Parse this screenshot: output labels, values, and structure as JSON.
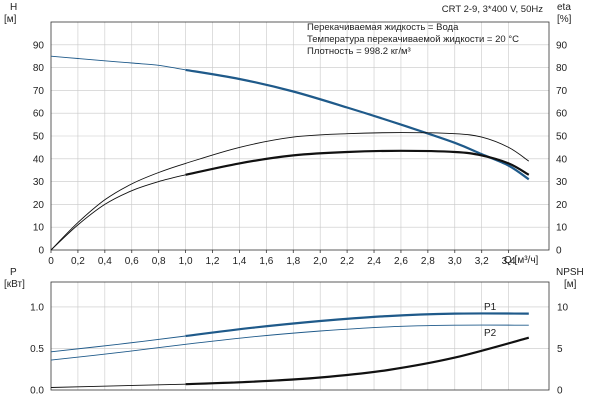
{
  "chart_data": [
    {
      "type": "line",
      "title": "CRT 2-9, 3*400 V, 50Hz",
      "info_lines": [
        "Перекачиваемая жидкость = Вода",
        "Температура перекачиваемой жидкости = 20 °C",
        "Плотность = 998.2 кг/м³"
      ],
      "xlabel": "Q [м³/ч]",
      "ylabel_left": [
        "H",
        "[м]"
      ],
      "ylabel_right": [
        "eta",
        "[%]"
      ],
      "xlim": [
        0,
        3.7
      ],
      "ylim": [
        0,
        100
      ],
      "x_ticks": [
        "0",
        "0,2",
        "0,4",
        "0,6",
        "0,8",
        "1,0",
        "1,2",
        "1,4",
        "1,6",
        "1,8",
        "2,0",
        "2,2",
        "2,4",
        "2,6",
        "2,8",
        "3,0",
        "3,2",
        "3,4"
      ],
      "x_tick_values": [
        0,
        0.2,
        0.4,
        0.6,
        0.8,
        1.0,
        1.2,
        1.4,
        1.6,
        1.8,
        2.0,
        2.2,
        2.4,
        2.6,
        2.8,
        3.0,
        3.2,
        3.4
      ],
      "y_ticks": [
        "0",
        "10",
        "20",
        "30",
        "40",
        "50",
        "60",
        "70",
        "80",
        "90"
      ],
      "y_tick_values": [
        0,
        10,
        20,
        30,
        40,
        50,
        60,
        70,
        80,
        90
      ],
      "grid": true,
      "series": [
        {
          "key": "H",
          "color": "#1f5a8a",
          "thin_x": [
            0,
            1.0
          ],
          "thick_x": [
            1.0,
            3.55
          ],
          "x": [
            0,
            0.2,
            0.4,
            0.6,
            0.8,
            1.0,
            1.4,
            1.8,
            2.2,
            2.6,
            3.0,
            3.2,
            3.4,
            3.55
          ],
          "values": [
            85,
            84,
            83,
            82,
            81,
            79,
            75,
            69.5,
            62.5,
            55,
            47,
            42,
            37,
            31
          ]
        },
        {
          "key": "eta_thin",
          "color": "#111111",
          "thin_x": [
            0,
            3.55
          ],
          "thick_x": null,
          "x": [
            0,
            0.2,
            0.4,
            0.6,
            0.8,
            1.0,
            1.4,
            1.8,
            2.2,
            2.6,
            3.0,
            3.2,
            3.4,
            3.55
          ],
          "values": [
            0,
            12,
            22,
            29,
            34,
            38,
            45,
            49.5,
            51,
            51.5,
            51,
            49.5,
            45,
            39
          ]
        },
        {
          "key": "eta_thick",
          "color": "#111111",
          "thin_x": [
            0,
            1.0
          ],
          "thick_x": [
            1.0,
            3.55
          ],
          "x": [
            0,
            0.2,
            0.4,
            0.6,
            0.8,
            1.0,
            1.4,
            1.8,
            2.2,
            2.6,
            3.0,
            3.2,
            3.4,
            3.55
          ],
          "values": [
            0,
            11,
            20,
            26,
            30,
            33,
            38,
            41.5,
            43,
            43.5,
            43,
            41.5,
            38,
            33
          ]
        }
      ]
    },
    {
      "type": "line",
      "ylabel_left": [
        "P",
        "[кВт]"
      ],
      "ylabel_right": [
        "NPSH",
        "[м]"
      ],
      "xlim": [
        0,
        3.7
      ],
      "ylim": [
        0,
        1.3
      ],
      "y2lim": [
        0,
        13
      ],
      "y_ticks": [
        "0.0",
        "0.5",
        "1.0"
      ],
      "y_tick_values": [
        0,
        0.5,
        1.0
      ],
      "y2_ticks": [
        "0",
        "5",
        "10"
      ],
      "y2_tick_values": [
        0,
        5,
        10
      ],
      "grid": true,
      "series": [
        {
          "key": "P1",
          "name": "P1",
          "color": "#1f5a8a",
          "thin_x": [
            0,
            1.0
          ],
          "thick_x": [
            1.0,
            3.55
          ],
          "x": [
            0,
            0.5,
            1.0,
            1.5,
            2.0,
            2.5,
            3.0,
            3.55
          ],
          "values": [
            0.46,
            0.55,
            0.65,
            0.75,
            0.83,
            0.89,
            0.92,
            0.92
          ]
        },
        {
          "key": "P2",
          "name": "P2",
          "color": "#1f5a8a",
          "thin_x": [
            0,
            3.55
          ],
          "thick_x": null,
          "x": [
            0,
            0.5,
            1.0,
            1.5,
            2.0,
            2.5,
            3.0,
            3.55
          ],
          "values": [
            0.36,
            0.45,
            0.55,
            0.64,
            0.71,
            0.76,
            0.78,
            0.78
          ]
        },
        {
          "key": "NPSH",
          "color": "#111111",
          "thin_x": [
            0,
            1.0
          ],
          "thick_x": [
            1.0,
            3.55
          ],
          "axis": "right",
          "x": [
            0,
            0.5,
            1.0,
            1.5,
            2.0,
            2.5,
            3.0,
            3.55
          ],
          "values": [
            0.3,
            0.5,
            0.7,
            1.0,
            1.5,
            2.4,
            3.9,
            6.3
          ]
        }
      ]
    }
  ]
}
